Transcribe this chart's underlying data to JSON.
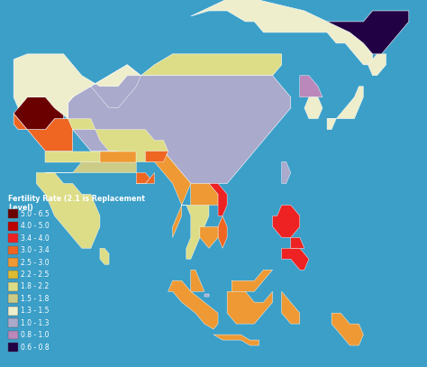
{
  "background_color": "#3B9FC8",
  "legend_title": "Fertility Rate (2.1 is Replacement\nLevel)",
  "legend_items": [
    {
      "label": "5.0 - 6.5",
      "color": "#6B0000"
    },
    {
      "label": "4.0 - 5.0",
      "color": "#BB0000"
    },
    {
      "label": "3.4 - 4.0",
      "color": "#EE2222"
    },
    {
      "label": "3.0 - 3.4",
      "color": "#EE6622"
    },
    {
      "label": "2.5 - 3.0",
      "color": "#EE9933"
    },
    {
      "label": "2.2 - 2.5",
      "color": "#DDBB33"
    },
    {
      "label": "1.8 - 2.2",
      "color": "#DDDD88"
    },
    {
      "label": "1.5 - 1.8",
      "color": "#CCCC88"
    },
    {
      "label": "1.3 - 1.5",
      "color": "#EEEECC"
    },
    {
      "label": "1.0 - 1.3",
      "color": "#AAAACC"
    },
    {
      "label": "0.8 - 1.0",
      "color": "#BB88BB"
    },
    {
      "label": "0.6 - 0.8",
      "color": "#220044"
    }
  ],
  "figsize": [
    4.74,
    4.07
  ],
  "dpi": 100,
  "legend_fontsize": 5.5,
  "legend_title_fontsize": 5.8,
  "map_extent": [
    58,
    152,
    -12,
    56
  ]
}
